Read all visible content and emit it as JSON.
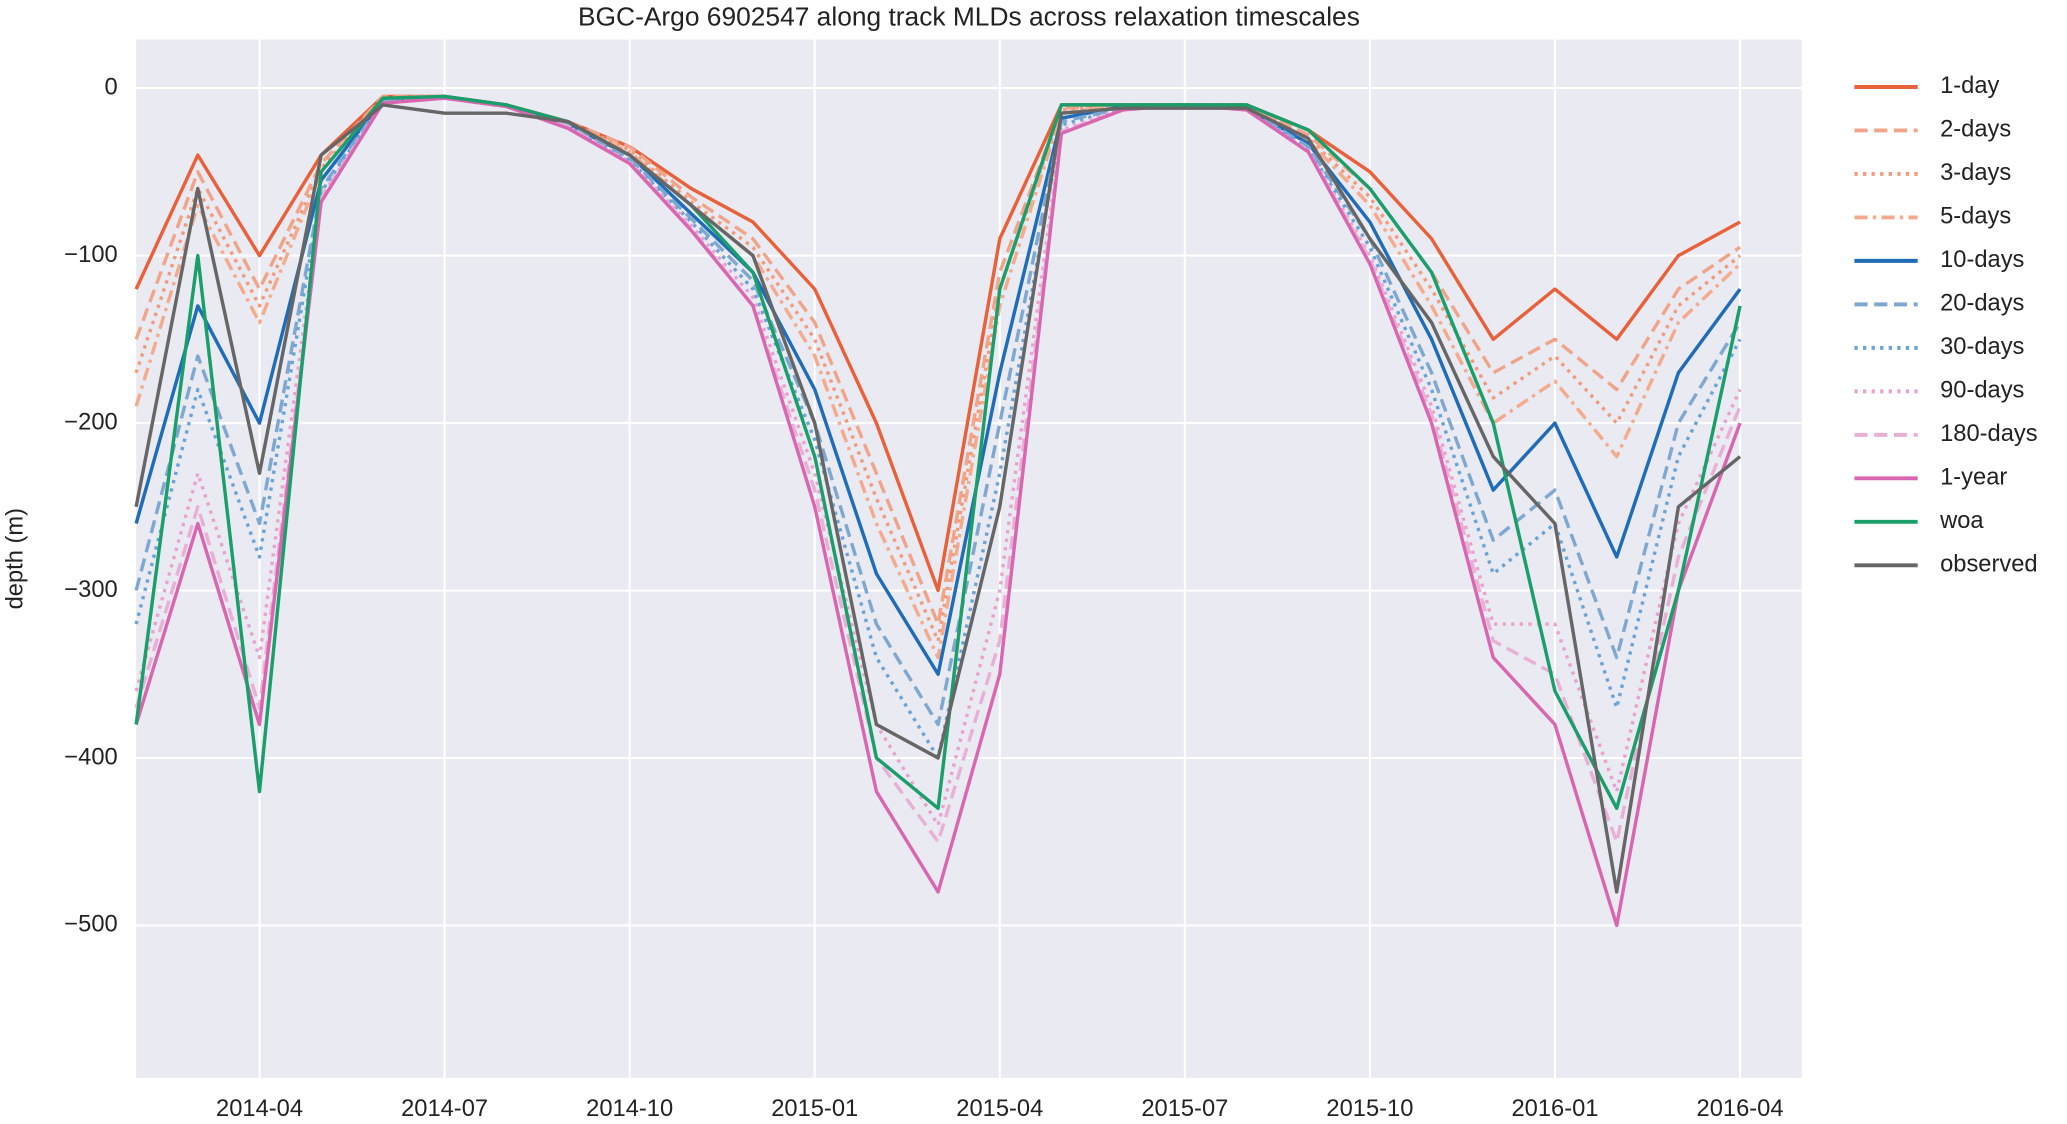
{
  "chart_data": {
    "type": "line",
    "title": "BGC-Argo 6902547 along track MLDs across relaxation timescales",
    "y_label": "depth (m)",
    "x": [
      "2014-02",
      "2014-03",
      "2014-04",
      "2014-05",
      "2014-06",
      "2014-07",
      "2014-08",
      "2014-09",
      "2014-10",
      "2014-11",
      "2014-12",
      "2015-01",
      "2015-02",
      "2015-03",
      "2015-04",
      "2015-05",
      "2015-06",
      "2015-07",
      "2015-08",
      "2015-09",
      "2015-10",
      "2015-11",
      "2015-12",
      "2016-01",
      "2016-02",
      "2016-03",
      "2016-04"
    ],
    "xlim": [
      "2014-02",
      "2016-05"
    ],
    "xticks": [
      "2014-04",
      "2014-07",
      "2014-10",
      "2015-01",
      "2015-04",
      "2015-07",
      "2015-10",
      "2016-01",
      "2016-04"
    ],
    "ylim": [
      -591,
      29
    ],
    "yticks": [
      {
        "value": -500,
        "label": "−500"
      },
      {
        "value": -400,
        "label": "−400"
      },
      {
        "value": -300,
        "label": "−300"
      },
      {
        "value": -200,
        "label": "−200"
      },
      {
        "value": -100,
        "label": "−100"
      },
      0
    ],
    "grid": true,
    "legend": "outside right",
    "series": [
      {
        "name": "1-day",
        "color": "#e8613a",
        "style": "solid",
        "values": [
          -120,
          -40,
          -100,
          -40,
          -5,
          -5,
          -10,
          -20,
          -35,
          -60,
          -80,
          -120,
          -200,
          -300,
          -90,
          -10,
          -10,
          -10,
          -10,
          -25,
          -50,
          -90,
          -150,
          -120,
          -150,
          -100,
          -80
        ]
      },
      {
        "name": "2-days",
        "color": "#f0a58a",
        "style": "dashed",
        "values": [
          -150,
          -50,
          -120,
          -45,
          -5,
          -5,
          -10,
          -20,
          -35,
          -65,
          -90,
          -140,
          -230,
          -320,
          -110,
          -12,
          -10,
          -10,
          -10,
          -28,
          -60,
          -110,
          -170,
          -150,
          -180,
          -120,
          -95
        ]
      },
      {
        "name": "3-days",
        "color": "#f29a7c",
        "style": "dotted",
        "values": [
          -170,
          -60,
          -130,
          -48,
          -5,
          -5,
          -10,
          -20,
          -37,
          -68,
          -95,
          -150,
          -245,
          -330,
          -120,
          -13,
          -10,
          -10,
          -10,
          -30,
          -65,
          -120,
          -185,
          -160,
          -200,
          -130,
          -100
        ]
      },
      {
        "name": "5-days",
        "color": "#f4aa8c",
        "style": "dashdot",
        "values": [
          -190,
          -70,
          -140,
          -50,
          -6,
          -5,
          -10,
          -21,
          -38,
          -70,
          -100,
          -160,
          -260,
          -340,
          -130,
          -15,
          -10,
          -10,
          -11,
          -31,
          -70,
          -130,
          -200,
          -175,
          -220,
          -140,
          -105
        ]
      },
      {
        "name": "10-days",
        "color": "#1f6cb8",
        "style": "solid",
        "values": [
          -260,
          -130,
          -200,
          -55,
          -7,
          -5,
          -10,
          -22,
          -40,
          -75,
          -110,
          -180,
          -290,
          -350,
          -170,
          -18,
          -11,
          -10,
          -12,
          -33,
          -80,
          -150,
          -240,
          -200,
          -280,
          -170,
          -120
        ]
      },
      {
        "name": "20-days",
        "color": "#7fa8d0",
        "style": "dashed",
        "values": [
          -300,
          -160,
          -260,
          -60,
          -8,
          -6,
          -11,
          -22,
          -42,
          -78,
          -115,
          -200,
          -320,
          -380,
          -200,
          -20,
          -12,
          -10,
          -12,
          -35,
          -90,
          -170,
          -270,
          -240,
          -340,
          -200,
          -140
        ]
      },
      {
        "name": "30-days",
        "color": "#6ba3d6",
        "style": "dotted",
        "values": [
          -320,
          -180,
          -280,
          -62,
          -8,
          -6,
          -11,
          -23,
          -43,
          -80,
          -120,
          -210,
          -340,
          -400,
          -230,
          -22,
          -12,
          -10,
          -12,
          -36,
          -95,
          -180,
          -290,
          -260,
          -370,
          -220,
          -150
        ]
      },
      {
        "name": "90-days",
        "color": "#e9a2d0",
        "style": "dotted",
        "values": [
          -360,
          -230,
          -340,
          -65,
          -9,
          -6,
          -11,
          -23,
          -44,
          -82,
          -125,
          -230,
          -380,
          -440,
          -300,
          -25,
          -12,
          -10,
          -13,
          -37,
          -100,
          -190,
          -320,
          -320,
          -420,
          -260,
          -180
        ]
      },
      {
        "name": "180-days",
        "color": "#e9b0d6",
        "style": "dashed",
        "values": [
          -370,
          -250,
          -370,
          -66,
          -9,
          -6,
          -11,
          -23,
          -45,
          -84,
          -130,
          -240,
          -400,
          -450,
          -330,
          -26,
          -13,
          -10,
          -13,
          -38,
          -102,
          -195,
          -330,
          -350,
          -450,
          -280,
          -190
        ]
      },
      {
        "name": "1-year",
        "color": "#d966b0",
        "style": "solid",
        "values": [
          -380,
          -260,
          -380,
          -68,
          -9,
          -6,
          -11,
          -24,
          -45,
          -85,
          -130,
          -250,
          -420,
          -480,
          -350,
          -27,
          -13,
          -10,
          -13,
          -38,
          -105,
          -200,
          -340,
          -380,
          -500,
          -300,
          -200
        ]
      },
      {
        "name": "woa",
        "color": "#1a9e6a",
        "style": "solid",
        "values": [
          -380,
          -100,
          -420,
          -50,
          -6,
          -5,
          -10,
          -20,
          -40,
          -70,
          -110,
          -220,
          -400,
          -430,
          -120,
          -10,
          -10,
          -10,
          -10,
          -25,
          -60,
          -110,
          -200,
          -360,
          -430,
          -300,
          -130
        ]
      },
      {
        "name": "observed",
        "color": "#666666",
        "style": "solid",
        "values": [
          -250,
          -60,
          -230,
          -40,
          -10,
          -15,
          -15,
          -20,
          -40,
          -70,
          -100,
          -200,
          -380,
          -400,
          -250,
          -15,
          -12,
          -12,
          -12,
          -30,
          -90,
          -140,
          -220,
          -260,
          -480,
          -250,
          -220
        ]
      }
    ]
  }
}
